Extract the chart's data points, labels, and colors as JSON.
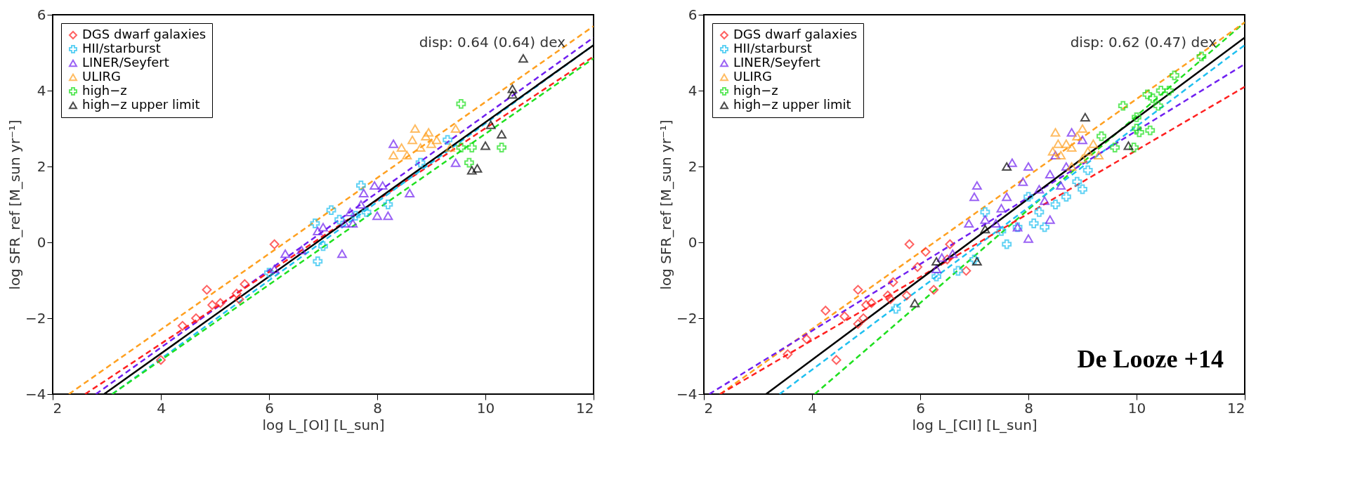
{
  "chart_data": [
    {
      "type": "scatter",
      "xlabel": "log L_[OI] [L_sun]",
      "ylabel": "log SFR_ref [M_sun yr⁻¹]",
      "xlim": [
        2,
        12
      ],
      "ylim": [
        -4,
        6
      ],
      "xticks": [
        2,
        4,
        6,
        8,
        10,
        12
      ],
      "yticks": [
        -4,
        -2,
        0,
        2,
        4,
        6
      ],
      "grid": false,
      "legend": "top left",
      "annotations": [
        "disp: 0.64 (0.64) dex"
      ],
      "series": [
        {
          "name": "DGS dwarf galaxies",
          "color": "#ff2020",
          "marker": "diamond",
          "x": [
            4.0,
            4.4,
            4.65,
            4.85,
            4.95,
            5.1,
            5.4,
            5.45,
            5.55,
            6.1
          ],
          "values": [
            -3.1,
            -2.2,
            -2.0,
            -1.25,
            -1.65,
            -1.6,
            -1.35,
            -1.5,
            -1.1,
            -0.05
          ]
        },
        {
          "name": "HII/starburst",
          "color": "#20c0f0",
          "marker": "cross",
          "x": [
            6.0,
            6.85,
            6.9,
            7.0,
            7.15,
            7.3,
            7.6,
            7.7,
            7.8,
            8.2,
            8.8,
            9.3
          ],
          "values": [
            -0.8,
            0.5,
            -0.5,
            -0.1,
            0.85,
            0.6,
            0.7,
            1.5,
            0.8,
            1.0,
            2.1,
            2.7
          ]
        },
        {
          "name": "LINER/Seyfert",
          "color": "#7020f0",
          "marker": "triangle",
          "x": [
            6.1,
            6.3,
            6.6,
            6.9,
            7.0,
            7.35,
            7.4,
            7.5,
            7.55,
            7.7,
            7.75,
            7.95,
            8.0,
            8.1,
            8.2,
            8.6,
            9.45,
            8.3
          ],
          "values": [
            -0.7,
            -0.3,
            -0.2,
            0.3,
            0.4,
            -0.3,
            0.5,
            0.8,
            0.5,
            1.0,
            1.3,
            1.5,
            0.7,
            1.5,
            0.7,
            1.3,
            2.1,
            2.6
          ]
        },
        {
          "name": "ULIRG",
          "color": "#ffa020",
          "marker": "triangle",
          "x": [
            8.3,
            8.45,
            8.55,
            8.65,
            8.7,
            8.8,
            8.9,
            9.0,
            8.95,
            9.1,
            9.45,
            9.35
          ],
          "values": [
            2.3,
            2.5,
            2.3,
            2.7,
            3.0,
            2.5,
            2.8,
            2.6,
            2.9,
            2.7,
            3.0,
            2.5
          ]
        },
        {
          "name": "high−z",
          "color": "#20e020",
          "marker": "cross",
          "x": [
            9.55,
            9.55,
            9.7,
            9.75,
            10.3
          ],
          "values": [
            3.65,
            2.5,
            2.1,
            2.5,
            2.5
          ]
        },
        {
          "name": "high−z upper limit",
          "color": "#000000",
          "marker": "triangle",
          "x": [
            9.75,
            9.85,
            10.0,
            10.1,
            10.3,
            10.5,
            10.5,
            10.7
          ],
          "values": [
            1.9,
            1.95,
            2.55,
            3.1,
            2.85,
            3.9,
            4.05,
            4.85
          ]
        },
        {
          "type": "line",
          "color": "#ffa020",
          "line_style": "dashed",
          "x": [
            2.3,
            12
          ],
          "values": [
            -4,
            5.7
          ]
        },
        {
          "type": "line",
          "color": "#7020f0",
          "line_style": "dashed",
          "x": [
            2.8,
            12
          ],
          "values": [
            -4,
            5.4
          ]
        },
        {
          "type": "line",
          "color": "#ff2020",
          "line_style": "dashed",
          "x": [
            2.6,
            12
          ],
          "values": [
            -4,
            4.9
          ]
        },
        {
          "type": "line",
          "color": "#20c0f0",
          "line_style": "dashed",
          "x": [
            3.1,
            12
          ],
          "values": [
            -4,
            5.2
          ]
        },
        {
          "type": "line",
          "color": "#20e020",
          "line_style": "dashed",
          "x": [
            3.1,
            12
          ],
          "values": [
            -4,
            4.85
          ]
        },
        {
          "type": "line",
          "color": "#000000",
          "line_style": "solid",
          "x": [
            2.95,
            12
          ],
          "values": [
            -4,
            5.2
          ]
        }
      ]
    },
    {
      "type": "scatter",
      "xlabel": "log L_[CII] [L_sun]",
      "ylabel": "log SFR_ref [M_sun yr⁻¹]",
      "xlim": [
        2,
        12
      ],
      "ylim": [
        -4,
        6
      ],
      "xticks": [
        2,
        4,
        6,
        8,
        10,
        12
      ],
      "yticks": [
        -4,
        -2,
        0,
        2,
        4,
        6
      ],
      "grid": false,
      "legend": "top left",
      "annotations": [
        "disp: 0.62 (0.47) dex",
        "De Looze +14"
      ],
      "series": [
        {
          "name": "DGS dwarf galaxies",
          "color": "#ff2020",
          "marker": "diamond",
          "x": [
            3.55,
            3.9,
            4.25,
            4.6,
            4.45,
            4.85,
            4.85,
            4.95,
            5.0,
            5.1,
            5.4,
            5.45,
            5.5,
            5.75,
            5.8,
            5.95,
            6.1,
            6.5,
            6.55,
            6.85,
            6.25
          ],
          "values": [
            -2.95,
            -2.55,
            -1.8,
            -1.95,
            -3.1,
            -1.25,
            -2.15,
            -2.0,
            -1.65,
            -1.6,
            -1.4,
            -1.5,
            -1.05,
            -1.4,
            -0.05,
            -0.65,
            -0.25,
            -0.45,
            -0.05,
            -0.75,
            -1.25
          ]
        },
        {
          "name": "HII/starburst",
          "color": "#20c0f0",
          "marker": "cross",
          "x": [
            5.55,
            6.3,
            6.7,
            7.0,
            7.2,
            7.6,
            7.8,
            8.0,
            8.1,
            8.3,
            8.5,
            8.7,
            8.9,
            9.1,
            9.0,
            7.5,
            8.2
          ],
          "values": [
            -1.75,
            -0.9,
            -0.75,
            -0.45,
            0.8,
            -0.05,
            0.4,
            1.2,
            0.5,
            0.4,
            1.0,
            1.2,
            1.6,
            1.9,
            1.4,
            0.3,
            0.8
          ]
        },
        {
          "name": "LINER/Seyfert",
          "color": "#7020f0",
          "marker": "triangle",
          "x": [
            6.3,
            6.4,
            6.6,
            6.9,
            7.0,
            7.05,
            7.2,
            7.5,
            7.6,
            7.7,
            7.9,
            8.0,
            8.2,
            8.3,
            8.4,
            8.5,
            8.6,
            8.7,
            8.8,
            9.0,
            7.8,
            8.0,
            8.4,
            7.4
          ],
          "values": [
            -0.7,
            -0.4,
            -0.3,
            0.5,
            1.2,
            1.5,
            0.6,
            0.9,
            1.2,
            2.1,
            1.6,
            2.0,
            1.4,
            1.1,
            1.8,
            2.3,
            1.5,
            2.0,
            2.9,
            2.7,
            0.4,
            0.1,
            0.6,
            0.5
          ]
        },
        {
          "name": "ULIRG",
          "color": "#ffa020",
          "marker": "triangle",
          "x": [
            8.45,
            8.5,
            8.6,
            8.7,
            8.8,
            8.9,
            9.0,
            9.1,
            9.2,
            9.3,
            8.8,
            9.0,
            8.55
          ],
          "values": [
            2.4,
            2.9,
            2.3,
            2.6,
            2.5,
            2.8,
            3.0,
            2.4,
            2.6,
            2.3,
            2.0,
            2.2,
            2.6
          ]
        },
        {
          "name": "high−z",
          "color": "#20e020",
          "marker": "cross",
          "x": [
            9.35,
            9.6,
            9.75,
            9.95,
            10.0,
            10.05,
            10.2,
            10.3,
            10.4,
            10.45,
            10.6,
            10.7,
            11.2,
            10.0,
            10.25
          ],
          "values": [
            2.8,
            2.5,
            3.6,
            2.5,
            3.3,
            2.9,
            3.9,
            3.8,
            3.6,
            4.0,
            4.0,
            4.4,
            4.9,
            3.0,
            2.95
          ]
        },
        {
          "name": "high−z upper limit",
          "color": "#000000",
          "marker": "triangle",
          "x": [
            7.6,
            9.05,
            9.85,
            5.9,
            7.2,
            6.3,
            7.05
          ],
          "values": [
            2.0,
            3.3,
            2.55,
            -1.6,
            0.35,
            -0.5,
            -0.5
          ]
        },
        {
          "type": "line",
          "color": "#20e020",
          "line_style": "dashed",
          "x": [
            4.05,
            12
          ],
          "values": [
            -4,
            5.8
          ]
        },
        {
          "type": "line",
          "color": "#ffa020",
          "line_style": "dashed",
          "x": [
            2.3,
            12
          ],
          "values": [
            -4,
            5.8
          ]
        },
        {
          "type": "line",
          "color": "#20c0f0",
          "line_style": "dashed",
          "x": [
            3.4,
            12
          ],
          "values": [
            -4,
            5.2
          ]
        },
        {
          "type": "line",
          "color": "#7020f0",
          "line_style": "dashed",
          "x": [
            2.1,
            12
          ],
          "values": [
            -4,
            4.7
          ]
        },
        {
          "type": "line",
          "color": "#ff2020",
          "line_style": "dashed",
          "x": [
            2.3,
            12
          ],
          "values": [
            -4,
            4.1
          ]
        },
        {
          "type": "line",
          "color": "#000000",
          "line_style": "solid",
          "x": [
            3.15,
            12
          ],
          "values": [
            -4,
            5.4
          ]
        }
      ]
    }
  ]
}
